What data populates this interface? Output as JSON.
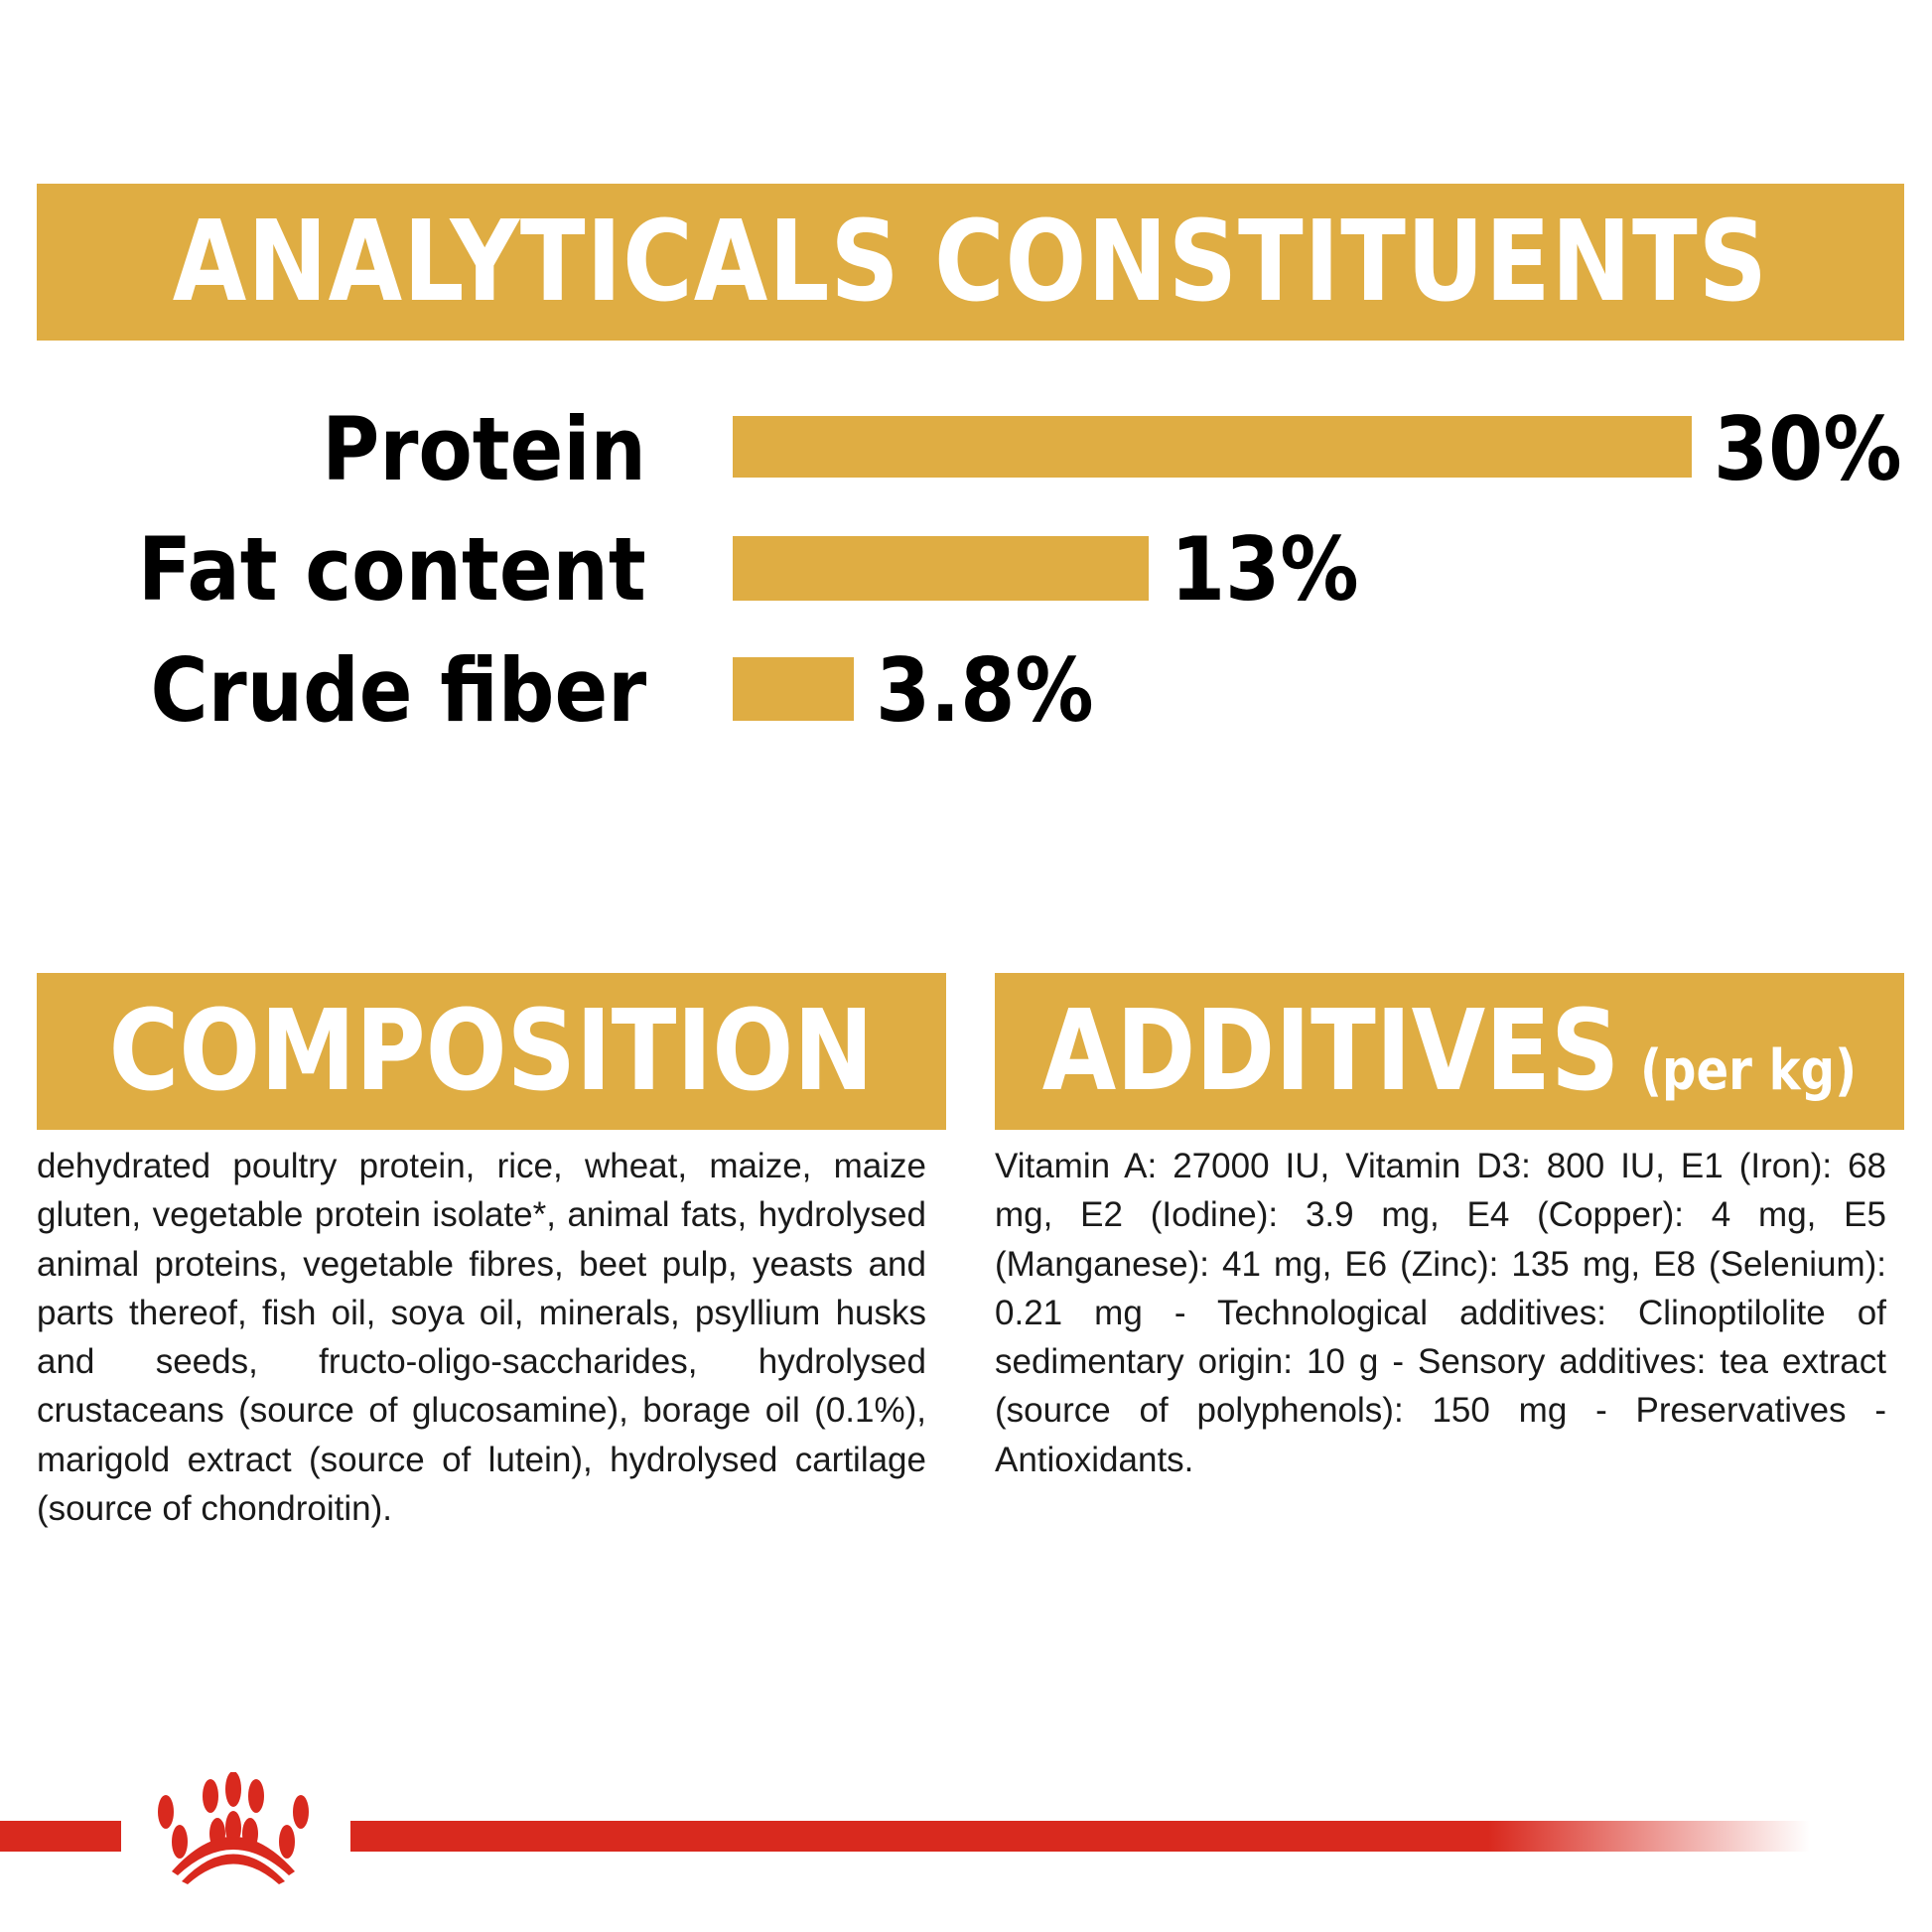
{
  "analytics": {
    "title": "ANALYTICALS CONSTITUENTS",
    "unit_max": 30,
    "items": [
      {
        "label": "Protein",
        "value": 30,
        "value_label": "30%"
      },
      {
        "label": "Fat content",
        "value": 13,
        "value_label": "13%"
      },
      {
        "label": "Crude fiber",
        "value": 3.8,
        "value_label": "3.8%"
      }
    ]
  },
  "composition": {
    "title": "COMPOSITION",
    "text": "dehydrated poultry protein, rice, wheat, maize, maize gluten, vegetable protein isolate*, animal fats, hydrolysed animal proteins, vegetable fibres, beet pulp, yeasts and parts thereof, fish oil, soya oil, minerals, psyllium husks and seeds, fructo-oligo-saccharides, hydrolysed crustaceans (source of glucosamine), borage oil (0.1%), marigold extract (source of lutein), hydrolysed cartilage (source of chondroitin)."
  },
  "additives": {
    "title": "ADDITIVES",
    "title_suffix": "(per kg)",
    "text": "Vitamin A: 27000 IU, Vitamin D3: 800 IU, E1 (Iron): 68 mg, E2 (Iodine): 3.9 mg, E4 (Copper): 4 mg, E5 (Manganese): 41 mg, E6 (Zinc): 135 mg, E8 (Selenium): 0.21 mg - Technological additives: Clinoptilolite of sedimentary origin: 10 g - Sensory additives: tea extract (source of polyphenols): 150 mg - Preservatives - Antioxidants."
  },
  "colors": {
    "accent": "#dfad43",
    "brand_red": "#d9291e"
  },
  "logo": {
    "icon": "royal-canin-crown-logo"
  }
}
